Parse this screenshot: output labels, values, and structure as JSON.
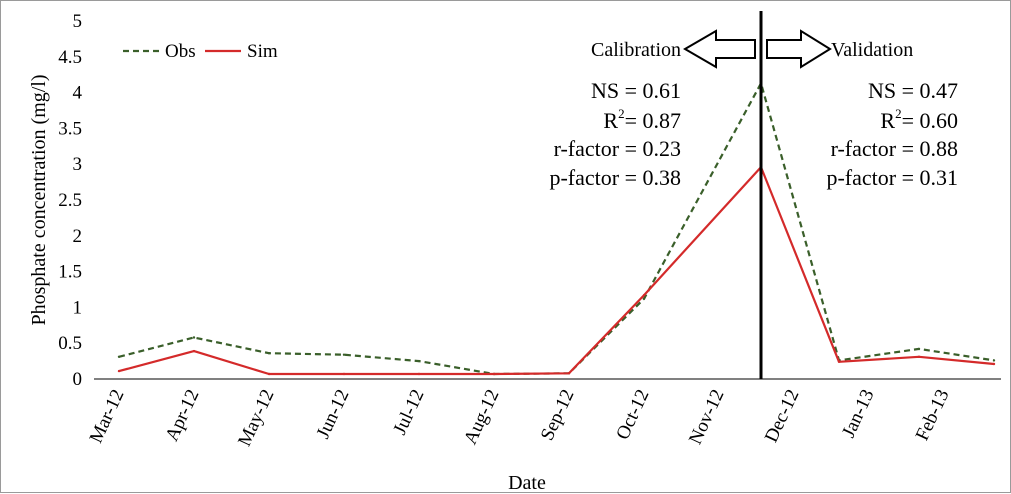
{
  "chart_data": {
    "type": "line",
    "title": "",
    "xlabel": "Date",
    "ylabel": "Phosphate concentration (mg/l)",
    "ylim": [
      0,
      5
    ],
    "yticks": [
      "0",
      "0.5",
      "1",
      "1.5",
      "2",
      "2.5",
      "3",
      "3.5",
      "4",
      "4.5",
      "5"
    ],
    "categories": [
      "Mar-12",
      "Apr-12",
      "May-12",
      "Jun-12",
      "Jul-12",
      "Aug-12",
      "Sep-12",
      "Oct-12",
      "Nov-12",
      "Dec-12",
      "Jan-13",
      "Feb-13"
    ],
    "x_points": [
      "Mar-12",
      "Apr-12",
      "May-12",
      "Jun-12",
      "Jul-12",
      "Aug-12",
      "Sep-12",
      "Oct-12",
      "Nov-12 / Dec-12",
      "Dec-12 / Jan-13",
      "Jan-13 / Feb-13",
      "Feb-13"
    ],
    "series": [
      {
        "name": "Obs",
        "color": "#3a5f2a",
        "style": "dashed",
        "values": [
          0.31,
          0.58,
          0.36,
          0.34,
          0.25,
          0.07,
          0.08,
          1.12,
          4.13,
          0.26,
          0.42,
          0.26
        ]
      },
      {
        "name": "Sim",
        "color": "#d42a2a",
        "style": "solid",
        "values": [
          0.11,
          0.39,
          0.07,
          0.07,
          0.07,
          0.07,
          0.08,
          1.17,
          2.96,
          0.24,
          0.31,
          0.21
        ]
      }
    ],
    "legend": {
      "position": "top-left"
    },
    "grid": false,
    "split_marker": {
      "at": "Nov-12 / Dec-12",
      "left_label": "Calibration",
      "right_label": "Validation"
    },
    "stats": {
      "calibration": {
        "ns": "NS = 0.61",
        "r2_prefix": "R",
        "r2_exp": "2",
        "r2_value": "= 0.87",
        "rfactor": "r-factor = 0.23",
        "pfactor": "p-factor = 0.38"
      },
      "validation": {
        "ns": "NS = 0.47",
        "r2_prefix": "R",
        "r2_exp": "2",
        "r2_value": "= 0.60",
        "rfactor": "r-factor = 0.88",
        "pfactor": "p-factor = 0.31"
      }
    }
  }
}
